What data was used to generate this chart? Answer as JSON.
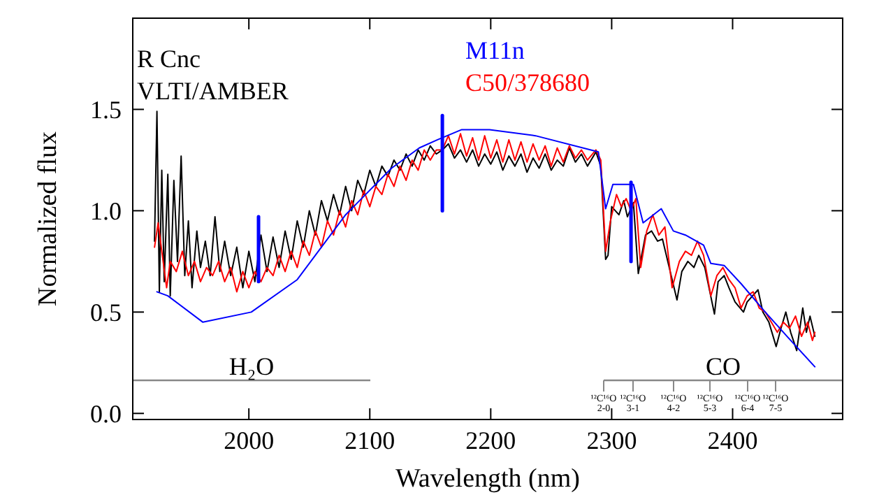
{
  "chart_data": {
    "type": "line",
    "xlabel": "Wavelength (nm)",
    "ylabel": "Normalized flux",
    "xlim": [
      1904,
      2491
    ],
    "ylim": [
      -0.03,
      1.95
    ],
    "xticks": [
      2000,
      2100,
      2200,
      2300,
      2400
    ],
    "yticks": [
      {
        "value": 0,
        "label": "0.0"
      },
      {
        "value": 0.5,
        "label": "0.5"
      },
      {
        "value": 1,
        "label": "1.0"
      },
      {
        "value": 1.5,
        "label": "1.5"
      }
    ],
    "grid": false,
    "legend": "top",
    "marker": "none",
    "line_style": "solid",
    "annotations": [
      "R Cnc",
      "VLTI/AMBER",
      "H₂O",
      "CO",
      "¹²C¹⁶O 2-0",
      "¹²C¹⁶O 3-1",
      "¹²C¹⁶O 4-2",
      "¹²C¹⁶O 5-3",
      "¹²C¹⁶O 6-4",
      "¹²C¹⁶O 7-5"
    ],
    "series": [
      {
        "color": "#000000",
        "x": [
          1922,
          1924,
          1926,
          1928,
          1930,
          1933,
          1935,
          1938,
          1941,
          1944,
          1947,
          1950,
          1953,
          1957,
          1960,
          1964,
          1968,
          1972,
          1976,
          1980,
          1985,
          1990,
          1995,
          2000,
          2005,
          2010,
          2015,
          2020,
          2025,
          2030,
          2035,
          2040,
          2045,
          2050,
          2055,
          2060,
          2065,
          2070,
          2075,
          2080,
          2085,
          2090,
          2095,
          2100,
          2105,
          2110,
          2115,
          2120,
          2125,
          2130,
          2135,
          2140,
          2145,
          2150,
          2155,
          2160,
          2165,
          2170,
          2175,
          2180,
          2185,
          2190,
          2195,
          2200,
          2205,
          2210,
          2215,
          2220,
          2225,
          2230,
          2235,
          2240,
          2245,
          2250,
          2255,
          2260,
          2265,
          2270,
          2275,
          2280,
          2287,
          2291,
          2295,
          2297,
          2300,
          2306,
          2310,
          2313,
          2318,
          2322,
          2328,
          2333,
          2338,
          2342,
          2354,
          2358,
          2363,
          2368,
          2372,
          2377,
          2385,
          2388,
          2393,
          2397,
          2402,
          2409,
          2412,
          2421,
          2425,
          2430,
          2436,
          2440,
          2444,
          2448,
          2453,
          2458,
          2461,
          2464,
          2468
        ],
        "values": [
          0.85,
          1.49,
          0.6,
          1.2,
          0.65,
          1.18,
          0.58,
          1.15,
          0.75,
          1.27,
          0.68,
          0.95,
          0.62,
          0.9,
          0.72,
          0.85,
          0.68,
          0.97,
          0.7,
          0.85,
          0.68,
          0.82,
          0.62,
          0.8,
          0.65,
          0.88,
          0.7,
          0.87,
          0.72,
          0.9,
          0.76,
          0.95,
          0.82,
          1.0,
          0.88,
          1.05,
          0.95,
          1.08,
          0.98,
          1.12,
          1.0,
          1.15,
          1.08,
          1.2,
          1.12,
          1.22,
          1.17,
          1.25,
          1.2,
          1.28,
          1.22,
          1.3,
          1.25,
          1.32,
          1.28,
          1.3,
          1.33,
          1.26,
          1.3,
          1.24,
          1.3,
          1.22,
          1.28,
          1.23,
          1.29,
          1.2,
          1.27,
          1.22,
          1.28,
          1.19,
          1.26,
          1.21,
          1.28,
          1.2,
          1.25,
          1.22,
          1.31,
          1.24,
          1.28,
          1.22,
          1.29,
          1.22,
          0.76,
          0.78,
          1.02,
          0.98,
          1.05,
          0.97,
          1.04,
          0.69,
          0.88,
          0.9,
          0.85,
          0.86,
          0.56,
          0.7,
          0.75,
          0.72,
          0.78,
          0.72,
          0.49,
          0.65,
          0.68,
          0.62,
          0.55,
          0.5,
          0.55,
          0.61,
          0.5,
          0.45,
          0.33,
          0.42,
          0.5,
          0.4,
          0.31,
          0.52,
          0.4,
          0.48,
          0.38
        ]
      },
      {
        "name": "C50/378680",
        "color": "#ff0000",
        "x": [
          1922,
          1925,
          1928,
          1932,
          1935,
          1940,
          1945,
          1950,
          1955,
          1960,
          1965,
          1970,
          1975,
          1980,
          1985,
          1990,
          1995,
          2000,
          2005,
          2010,
          2015,
          2020,
          2025,
          2030,
          2035,
          2040,
          2045,
          2050,
          2055,
          2060,
          2065,
          2070,
          2075,
          2080,
          2085,
          2090,
          2095,
          2100,
          2105,
          2110,
          2115,
          2120,
          2125,
          2130,
          2135,
          2140,
          2145,
          2150,
          2155,
          2160,
          2165,
          2170,
          2175,
          2180,
          2185,
          2190,
          2195,
          2200,
          2205,
          2210,
          2215,
          2220,
          2225,
          2230,
          2235,
          2240,
          2245,
          2250,
          2255,
          2260,
          2265,
          2270,
          2275,
          2280,
          2287,
          2291,
          2295,
          2299,
          2304,
          2308,
          2312,
          2316,
          2320,
          2324,
          2329,
          2334,
          2339,
          2344,
          2350,
          2356,
          2361,
          2366,
          2371,
          2376,
          2382,
          2387,
          2392,
          2397,
          2402,
          2407,
          2412,
          2417,
          2422,
          2427,
          2432,
          2437,
          2442,
          2447,
          2452,
          2457,
          2462,
          2466,
          2468
        ],
        "values": [
          0.82,
          0.94,
          0.8,
          0.62,
          0.75,
          0.7,
          0.8,
          0.68,
          0.75,
          0.65,
          0.72,
          0.68,
          0.75,
          0.65,
          0.72,
          0.6,
          0.7,
          0.62,
          0.7,
          0.65,
          0.72,
          0.68,
          0.78,
          0.7,
          0.8,
          0.72,
          0.85,
          0.78,
          0.9,
          0.82,
          0.95,
          0.88,
          1.0,
          0.92,
          1.05,
          0.98,
          1.1,
          1.02,
          1.12,
          1.08,
          1.18,
          1.12,
          1.22,
          1.15,
          1.25,
          1.2,
          1.3,
          1.25,
          1.3,
          1.3,
          1.37,
          1.28,
          1.38,
          1.27,
          1.36,
          1.25,
          1.37,
          1.26,
          1.35,
          1.24,
          1.35,
          1.25,
          1.34,
          1.24,
          1.33,
          1.25,
          1.32,
          1.22,
          1.31,
          1.24,
          1.32,
          1.26,
          1.3,
          1.25,
          1.3,
          1.25,
          0.8,
          0.95,
          1.08,
          1.02,
          1.06,
          1.0,
          1.06,
          0.72,
          0.9,
          0.98,
          0.88,
          0.92,
          0.62,
          0.75,
          0.8,
          0.78,
          0.85,
          0.78,
          0.58,
          0.68,
          0.72,
          0.66,
          0.62,
          0.52,
          0.58,
          0.6,
          0.52,
          0.5,
          0.45,
          0.4,
          0.45,
          0.42,
          0.48,
          0.38,
          0.45,
          0.36,
          0.4
        ]
      },
      {
        "name": "M11n",
        "color": "#0000ff",
        "x": [
          1924,
          1933,
          1962,
          2002,
          2040,
          2080,
          2118,
          2141,
          2156,
          2176,
          2199,
          2237,
          2289,
          2295,
          2301,
          2318,
          2326,
          2341,
          2351,
          2361,
          2376,
          2382,
          2393,
          2407,
          2427,
          2445,
          2468
        ],
        "values": [
          0.6,
          0.58,
          0.45,
          0.5,
          0.66,
          0.98,
          1.21,
          1.31,
          1.35,
          1.4,
          1.4,
          1.37,
          1.29,
          1.01,
          1.13,
          1.13,
          0.94,
          1.01,
          0.9,
          0.88,
          0.83,
          0.74,
          0.73,
          0.64,
          0.5,
          0.38,
          0.23
        ]
      },
      {
        "color": "#0000ff",
        "x": [
          2008,
          2008
        ],
        "values": [
          0.65,
          0.97
        ]
      },
      {
        "color": "#0000ff",
        "x": [
          2160,
          2160
        ],
        "values": [
          1.0,
          1.47
        ]
      },
      {
        "color": "#0000ff",
        "x": [
          2316,
          2316
        ],
        "values": [
          0.75,
          1.14
        ]
      }
    ]
  }
}
